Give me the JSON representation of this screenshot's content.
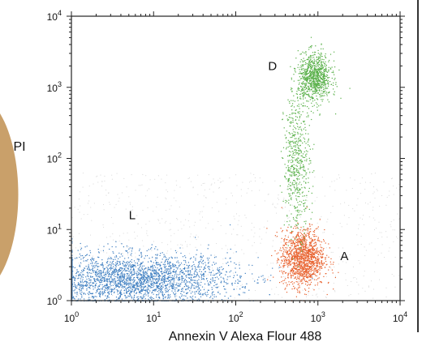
{
  "chart_data": {
    "type": "scatter",
    "title": "",
    "xlabel": "Annexin V Alexa Flour 488",
    "ylabel": "PI",
    "x_scale": "log",
    "y_scale": "log",
    "xlim": [
      1,
      10000
    ],
    "ylim": [
      1,
      10000
    ],
    "x_ticks": [
      {
        "base": "10",
        "exp": "0"
      },
      {
        "base": "10",
        "exp": "1"
      },
      {
        "base": "10",
        "exp": "2"
      },
      {
        "base": "10",
        "exp": "3"
      },
      {
        "base": "10",
        "exp": "4"
      }
    ],
    "y_ticks": [
      {
        "base": "10",
        "exp": "0"
      },
      {
        "base": "10",
        "exp": "1"
      },
      {
        "base": "10",
        "exp": "2"
      },
      {
        "base": "10",
        "exp": "3"
      },
      {
        "base": "10",
        "exp": "4"
      }
    ],
    "grid": false,
    "series": [
      {
        "label": "L",
        "color": "#3f7fc1",
        "clusters": [
          {
            "center": [
              6,
              2.0
            ],
            "spread_log10": [
              0.6,
              0.18
            ],
            "n": 2600
          }
        ],
        "label_at": [
          5.5,
          14
        ]
      },
      {
        "label": "A",
        "color": "#e8602c",
        "clusters": [
          {
            "center": [
              650,
              4.0
            ],
            "spread_log10": [
              0.13,
              0.2
            ],
            "n": 1300
          }
        ],
        "label_at": [
          2100,
          3.7
        ]
      },
      {
        "label": "D",
        "color": "#59b049",
        "clusters": [
          {
            "center": [
              900,
              1400
            ],
            "spread_log10": [
              0.1,
              0.17
            ],
            "n": 900
          },
          {
            "center": [
              550,
              90
            ],
            "spread_log10": [
              0.08,
              0.5
            ],
            "n": 550
          }
        ],
        "label_at": [
          280,
          1750
        ]
      }
    ]
  },
  "decor": {
    "left_shape_color": "#c9a06a",
    "side_line_color": "#333333",
    "axis_color": "#222222"
  }
}
